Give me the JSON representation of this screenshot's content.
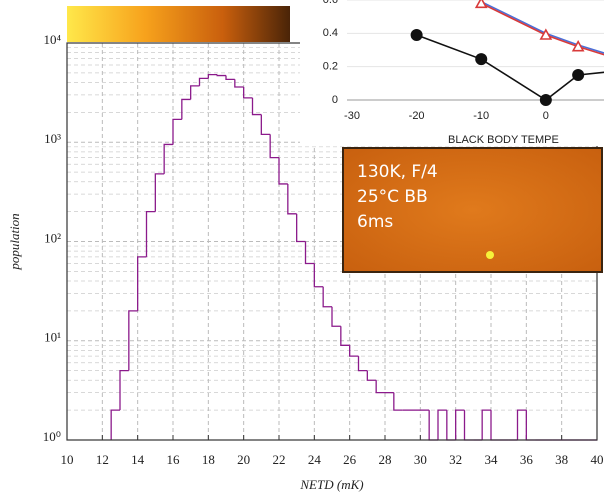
{
  "chart_data": [
    {
      "type": "histogram",
      "xlabel": "NETD (mK)",
      "ylabel": "population",
      "color": "#8b1a8b",
      "bins": [
        12.5,
        13,
        13.5,
        14,
        14.5,
        15,
        15.5,
        16,
        16.5,
        17,
        17.5,
        18,
        18.5,
        19,
        19.5,
        20,
        20.5,
        21,
        21.5,
        22,
        22.5,
        23,
        23.5,
        24,
        24.5,
        25,
        25.5,
        26,
        26.5,
        27,
        27.5,
        28,
        28.5,
        29,
        29.5,
        30,
        30.5,
        31,
        31.5,
        32,
        32.5,
        33,
        33.5,
        34,
        34.5,
        35,
        35.5,
        36,
        36.5,
        37,
        37.5,
        38,
        38.5,
        39,
        39.5,
        40
      ],
      "values": [
        2,
        5,
        20,
        70,
        200,
        480,
        950,
        1700,
        2700,
        3700,
        4400,
        4800,
        4700,
        4300,
        3600,
        2800,
        1900,
        1200,
        700,
        380,
        190,
        100,
        60,
        35,
        22,
        14,
        9,
        7,
        5,
        4,
        3,
        3,
        2,
        2,
        2,
        2,
        1,
        2,
        1,
        2,
        1,
        1,
        2,
        1,
        1,
        1,
        2,
        1,
        1,
        1,
        1,
        1,
        1,
        1,
        1
      ],
      "xlim": [
        10,
        40
      ],
      "xticks": [
        10,
        12,
        14,
        16,
        18,
        20,
        22,
        24,
        26,
        28,
        30,
        32,
        34,
        36,
        38,
        40
      ],
      "ylim": [
        1,
        10000
      ],
      "log_y": true,
      "yticks": [
        {
          "value": 1,
          "label": "10⁰"
        },
        {
          "value": 10,
          "label": "10¹"
        },
        {
          "value": 100,
          "label": "10²"
        },
        {
          "value": 1000,
          "label": "10³"
        },
        {
          "value": 10000,
          "label": "10⁴"
        }
      ],
      "grid": true
    },
    {
      "type": "line",
      "xlabel": "BLACK BODY TEMPE",
      "x": [
        -20,
        -10,
        0,
        5,
        10
      ],
      "series": [
        {
          "color": "#111111",
          "marker": "circle",
          "values": [
            0.39,
            0.245,
            0,
            0.15,
            0.17
          ]
        },
        {
          "color": "#4a6fd8",
          "marker": "none",
          "values": [
            null,
            0.59,
            0.4,
            0.33,
            0.27
          ]
        },
        {
          "color": "#d83a3a",
          "marker": "triangle",
          "values": [
            null,
            0.58,
            0.39,
            0.32,
            0.26
          ]
        }
      ],
      "xlim": [
        -30,
        9
      ],
      "xticks": [
        -30,
        -20,
        -10,
        0
      ],
      "ylim": [
        0,
        0.6
      ],
      "yticks": [
        0,
        0.2,
        0.4,
        {
          "value": 0.6,
          "label": "0.6"
        }
      ]
    }
  ],
  "image_inset": {
    "lines": [
      "130K, F/4",
      "25°C BB",
      "6ms"
    ]
  }
}
